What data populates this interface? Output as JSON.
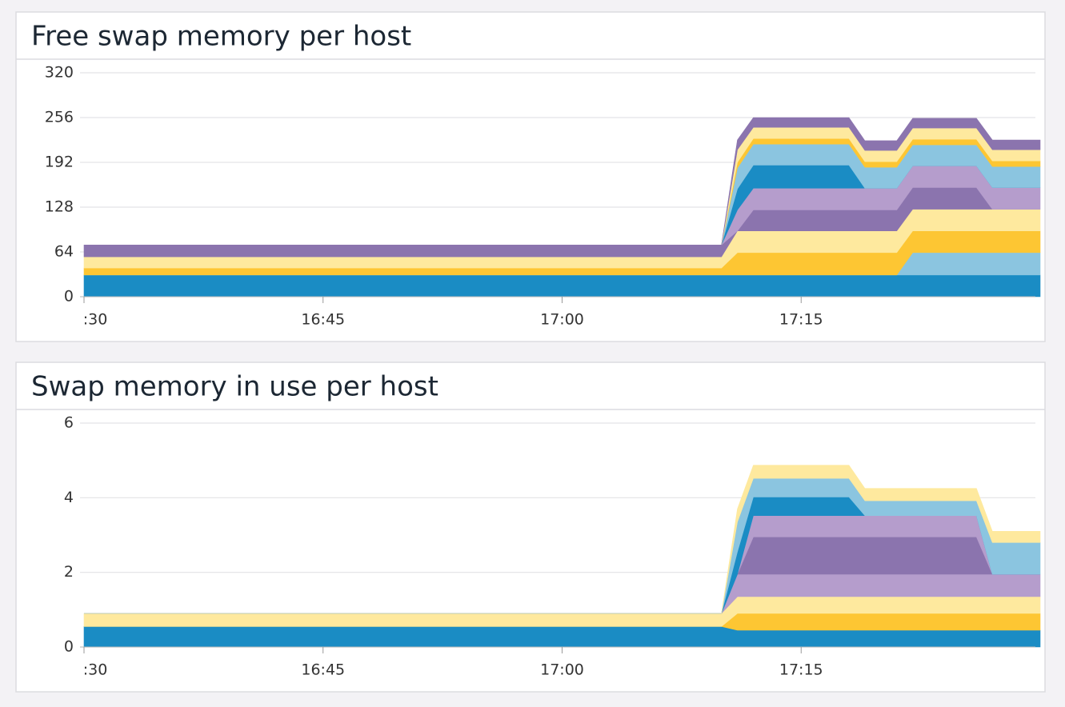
{
  "chart_data": [
    {
      "type": "stacked-area",
      "title": "Free swap memory per host",
      "x": [
        "16:30",
        "17:10",
        "17:11",
        "17:12",
        "17:18",
        "17:19",
        "17:21",
        "17:22",
        "17:26",
        "17:27",
        "17:30"
      ],
      "xlim": [
        "16:30",
        "17:30"
      ],
      "xticks": [
        {
          "value": "16:30",
          "label": ":30"
        },
        "16:45",
        "17:00",
        "17:15"
      ],
      "ylim": [
        0,
        320
      ],
      "yticks": [
        0,
        64,
        128,
        192,
        256,
        320
      ],
      "grid": true,
      "series": [
        {
          "color": "#1a8cc4",
          "values": [
            31,
            31,
            31,
            31,
            31,
            31,
            31,
            31,
            31,
            31,
            31
          ]
        },
        {
          "color": "#8bc5e0",
          "values": [
            0,
            0,
            0,
            0,
            0,
            0,
            0,
            32,
            32,
            32,
            32
          ]
        },
        {
          "color": "#fdc633",
          "values": [
            10,
            10,
            32,
            32,
            32,
            32,
            32,
            31,
            31,
            31,
            31
          ]
        },
        {
          "color": "#fee99e",
          "values": [
            16,
            16,
            31,
            31,
            31,
            31,
            31,
            31,
            31,
            31,
            31
          ]
        },
        {
          "color": "#8b74ae",
          "values": [
            17,
            17,
            0,
            30,
            30,
            30,
            30,
            31,
            31,
            0,
            0
          ]
        },
        {
          "color": "#b59dcc",
          "values": [
            0,
            0,
            30,
            31,
            31,
            31,
            31,
            31,
            31,
            31,
            31
          ]
        },
        {
          "color": "#1a8cc4",
          "values": [
            0,
            0,
            30,
            33,
            33,
            0,
            0,
            0,
            0,
            0,
            0
          ]
        },
        {
          "color": "#8bc5e0",
          "values": [
            0,
            0,
            30,
            30,
            30,
            30,
            30,
            30,
            30,
            30,
            30
          ]
        },
        {
          "color": "#fdc633",
          "values": [
            0,
            0,
            8,
            8,
            8,
            8,
            8,
            8,
            8,
            8,
            8
          ]
        },
        {
          "color": "#fee99e",
          "values": [
            0,
            0,
            18,
            16,
            16,
            16,
            16,
            16,
            16,
            16,
            16
          ]
        },
        {
          "color": "#8b74ae",
          "values": [
            0,
            0,
            14,
            14,
            14,
            14,
            14,
            14,
            14,
            14,
            14
          ]
        }
      ]
    },
    {
      "type": "stacked-area",
      "title": "Swap memory in use per host",
      "x": [
        "16:30",
        "17:10",
        "17:11",
        "17:12",
        "17:18",
        "17:19",
        "17:26",
        "17:27",
        "17:30"
      ],
      "xlim": [
        "16:30",
        "17:30"
      ],
      "xticks": [
        {
          "value": "16:30",
          "label": ":30"
        },
        "16:45",
        "17:00",
        "17:15"
      ],
      "ylim": [
        0,
        6
      ],
      "yticks": [
        0,
        2,
        4,
        6
      ],
      "grid": true,
      "series": [
        {
          "color": "#1a8cc4",
          "values": [
            0.55,
            0.55,
            0.45,
            0.45,
            0.45,
            0.45,
            0.45,
            0.45,
            0.45
          ]
        },
        {
          "color": "#fdc633",
          "values": [
            0,
            0,
            0.45,
            0.45,
            0.45,
            0.45,
            0.45,
            0.45,
            0.45
          ]
        },
        {
          "color": "#fee99e",
          "values": [
            0.35,
            0.35,
            0.45,
            0.45,
            0.45,
            0.45,
            0.45,
            0.45,
            0.45
          ]
        },
        {
          "color": "#b59dcc",
          "values": [
            0,
            0,
            0.6,
            0.6,
            0.6,
            0.6,
            0.6,
            0.6,
            0.6
          ]
        },
        {
          "color": "#8b74ae",
          "values": [
            0,
            0,
            0,
            1.0,
            1.0,
            1.0,
            1.0,
            0,
            0
          ]
        },
        {
          "color": "#b59dcc",
          "values": [
            0,
            0,
            0,
            0.57,
            0.57,
            0.57,
            0.57,
            0,
            0
          ]
        },
        {
          "color": "#1a8cc4",
          "values": [
            0,
            0,
            0.6,
            0.5,
            0.5,
            0,
            0,
            0,
            0
          ]
        },
        {
          "color": "#8bc5e0",
          "values": [
            0,
            0,
            0.8,
            0.5,
            0.5,
            0.4,
            0.4,
            0.85,
            0.85
          ]
        },
        {
          "color": "#fee99e",
          "values": [
            0,
            0,
            0.35,
            0.35,
            0.35,
            0.33,
            0.33,
            0.3,
            0.3
          ]
        }
      ]
    }
  ]
}
